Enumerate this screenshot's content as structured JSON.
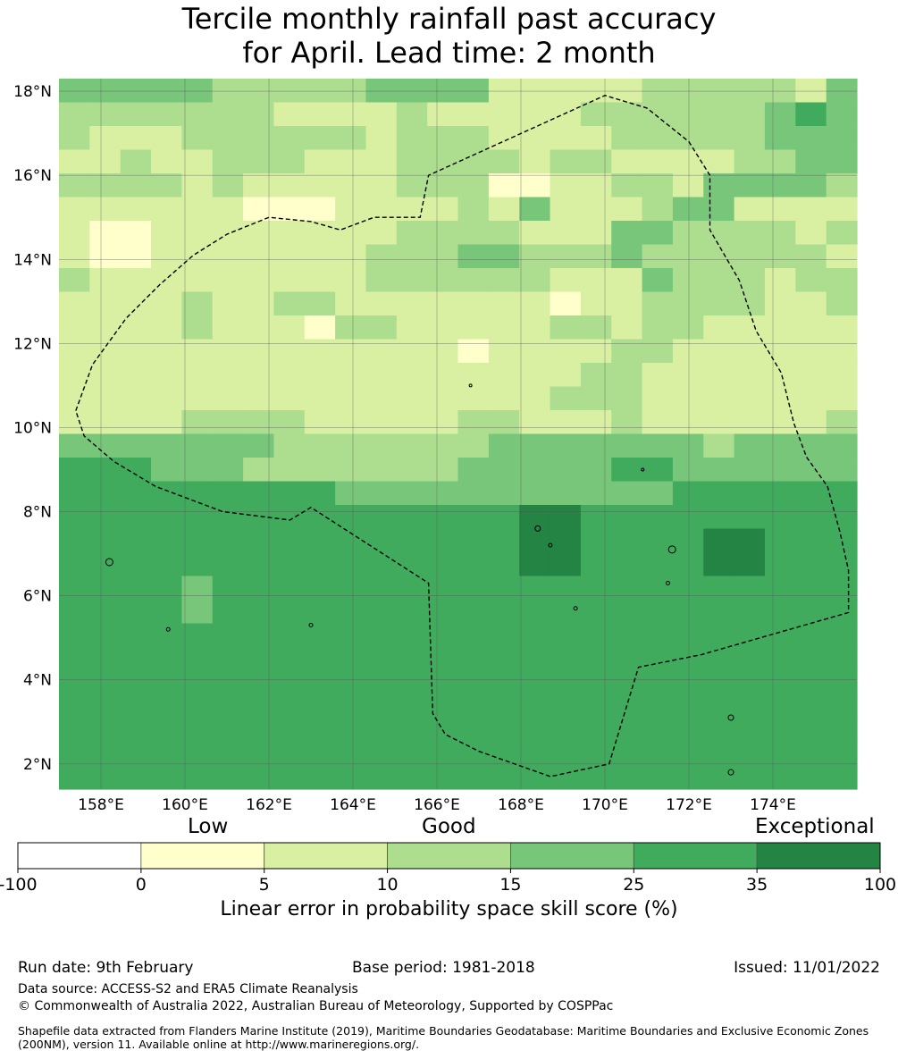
{
  "title": {
    "line1": "Tercile monthly rainfall past accuracy",
    "line2": "for April. Lead time: 2 month"
  },
  "map": {
    "lon_range": [
      157.0,
      176.0
    ],
    "lat_range": [
      1.4,
      18.3
    ],
    "lon_ticks": [
      "158°E",
      "160°E",
      "162°E",
      "164°E",
      "166°E",
      "168°E",
      "170°E",
      "172°E",
      "174°E"
    ],
    "lon_tick_values": [
      158,
      160,
      162,
      164,
      166,
      168,
      170,
      172,
      174
    ],
    "lat_ticks": [
      "2°N",
      "4°N",
      "6°N",
      "8°N",
      "10°N",
      "12°N",
      "14°N",
      "16°N",
      "18°N"
    ],
    "lat_tick_values": [
      2,
      4,
      6,
      8,
      10,
      12,
      14,
      16,
      18
    ],
    "grid_rows": [
      "33333222223333111112222213",
      "22222221111211111222222343",
      "21112222221222111122222333",
      "11211222111222212211112233",
      "22221211111222001122133332",
      "11111100011112131112331111",
      "10011111111222211133222212",
      "10011111112223322232222221",
      "21111111112222221113222122",
      "11112112211111110112222112",
      "11112111022111112212211111",
      "11111111111110111122111111",
      "11111111111111111221111111",
      "11111111111111112221111111",
      "11112222111112211121111112",
      "33333332222222333333323333",
      "44433322222223333344333333",
      "44444444433333333333444444",
      "44444444444444455444444444",
      "44444444444444455444455444",
      "44444444444444455444455444",
      "44443444444444444444444444",
      "44443444444444444444444444",
      "44444444444444444444444444",
      "44444444444444444444444444",
      "44444444444444444444444444",
      "44444444444444444444444444",
      "44444444444444444444444444",
      "44444444444444444444444444",
      "44444444444444444444444444"
    ],
    "boundary_path": [
      [
        157.4,
        10.4
      ],
      [
        157.8,
        11.5
      ],
      [
        158.6,
        12.6
      ],
      [
        159.4,
        13.4
      ],
      [
        160.2,
        14.1
      ],
      [
        161.0,
        14.6
      ],
      [
        162.0,
        15.0
      ],
      [
        163.0,
        14.9
      ],
      [
        163.7,
        14.7
      ],
      [
        164.5,
        15.0
      ],
      [
        165.6,
        15.0
      ],
      [
        165.8,
        16.0
      ],
      [
        170.0,
        17.9
      ],
      [
        171.0,
        17.6
      ],
      [
        172.0,
        16.8
      ],
      [
        172.5,
        16.0
      ],
      [
        172.5,
        14.7
      ],
      [
        173.2,
        13.5
      ],
      [
        173.6,
        12.3
      ],
      [
        174.2,
        11.3
      ],
      [
        174.5,
        10.1
      ],
      [
        174.8,
        9.3
      ],
      [
        175.3,
        8.6
      ],
      [
        175.6,
        7.5
      ],
      [
        175.8,
        6.6
      ],
      [
        175.8,
        5.6
      ],
      [
        172.3,
        4.6
      ],
      [
        170.8,
        4.3
      ],
      [
        170.1,
        2.0
      ],
      [
        168.7,
        1.7
      ],
      [
        167.0,
        2.3
      ],
      [
        166.2,
        2.7
      ],
      [
        165.9,
        3.2
      ],
      [
        165.8,
        6.3
      ],
      [
        163.0,
        8.1
      ],
      [
        162.5,
        7.8
      ],
      [
        160.9,
        8.0
      ],
      [
        159.3,
        8.6
      ],
      [
        158.3,
        9.2
      ],
      [
        157.6,
        9.8
      ],
      [
        157.4,
        10.4
      ]
    ]
  },
  "colorbar": {
    "colors": [
      "#ffffff",
      "#ffffcc",
      "#d9f0a3",
      "#addd8e",
      "#78c679",
      "#41ab5d",
      "#238443"
    ],
    "ticks": [
      "-100",
      "0",
      "5",
      "10",
      "15",
      "25",
      "35",
      "100"
    ],
    "category_low": "Low",
    "category_good": "Good",
    "category_exceptional": "Exceptional",
    "axis_label": "Linear error in probability space skill score (%)"
  },
  "footer": {
    "run_date": "Run date: 9th February",
    "base_period": "Base period: 1981-2018",
    "issued": "Issued: 11/01/2022",
    "data_source": "Data source: ACCESS-S2 and ERA5 Climate Reanalysis",
    "copyright": "© Commonwealth of Australia 2022, Australian Bureau of Meteorology, Supported by COSPPac",
    "shapefile": "Shapefile data extracted from Flanders Marine Institute (2019), Maritime Boundaries Geodatabase: Maritime Boundaries and Exclusive Economic Zones (200NM), version 11. Available online at http://www.marineregions.org/."
  }
}
